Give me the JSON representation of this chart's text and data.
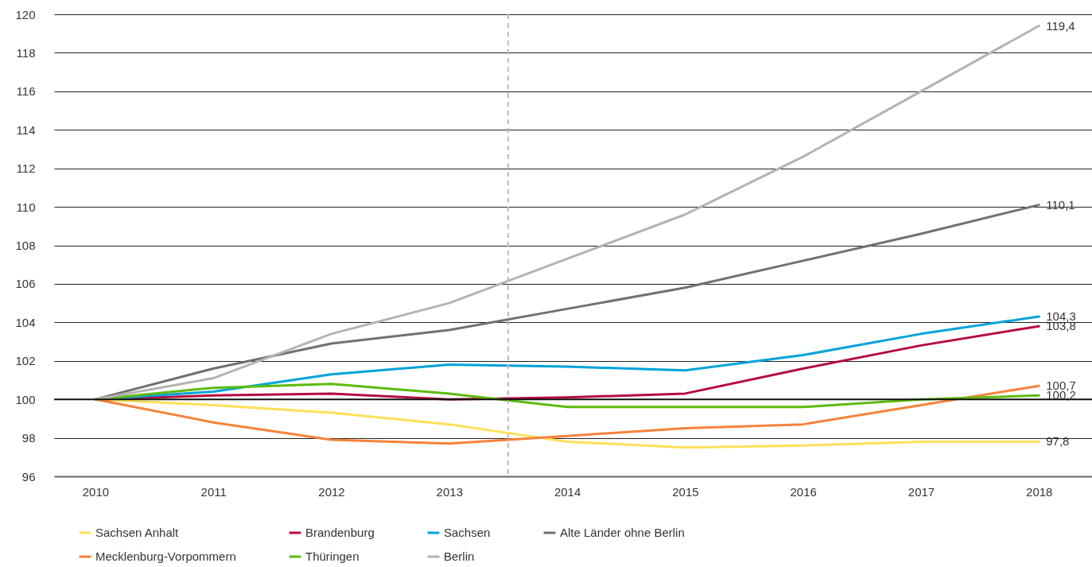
{
  "chart_data": {
    "type": "line",
    "x": [
      2010,
      2011,
      2012,
      2013,
      2014,
      2015,
      2016,
      2017,
      2018
    ],
    "xlim": [
      2009.65,
      2018.45
    ],
    "xticks": [
      2010,
      2011,
      2012,
      2013,
      2014,
      2015,
      2016,
      2017,
      2018
    ],
    "ylim": [
      96,
      120
    ],
    "yticks": [
      96,
      98,
      100,
      102,
      104,
      106,
      108,
      110,
      112,
      114,
      116,
      118,
      120
    ],
    "grid": "y",
    "legend": "bottom",
    "line_style": "solid",
    "ref_lines": [
      {
        "axis": "x",
        "value": 2013.5,
        "color": "#bbbbbb",
        "line_style": "dashed"
      },
      {
        "axis": "y",
        "value": 100,
        "color": "#111111",
        "line_style": "solid"
      }
    ],
    "series": [
      {
        "name": "Sachsen Anhalt",
        "color": "#ffe05a",
        "values": [
          100,
          99.7,
          99.3,
          98.7,
          97.8,
          97.5,
          97.6,
          97.8,
          97.8
        ],
        "value_labels": [
          null,
          null,
          null,
          null,
          null,
          null,
          null,
          null,
          "97,8"
        ]
      },
      {
        "name": "Brandenburg",
        "color": "#b50c3c",
        "values": [
          100,
          100.2,
          100.3,
          100.0,
          100.1,
          100.3,
          101.6,
          102.8,
          103.8
        ],
        "value_labels": [
          null,
          null,
          null,
          null,
          null,
          null,
          null,
          null,
          "103,8"
        ]
      },
      {
        "name": "Sachsen",
        "color": "#00a3d9",
        "values": [
          100,
          100.4,
          101.3,
          101.8,
          101.7,
          101.5,
          102.3,
          103.4,
          104.3
        ],
        "value_labels": [
          null,
          null,
          null,
          null,
          null,
          null,
          null,
          null,
          "104,3"
        ]
      },
      {
        "name": "Alte Länder ohne Berlin",
        "color": "#717171",
        "values": [
          100,
          101.6,
          102.9,
          103.6,
          104.7,
          105.8,
          107.2,
          108.6,
          110.1
        ],
        "value_labels": [
          null,
          null,
          null,
          null,
          null,
          null,
          null,
          null,
          "110,1"
        ]
      },
      {
        "name": "Mecklenburg-Vorpommern",
        "color": "#f7823c",
        "values": [
          100,
          98.8,
          97.9,
          97.7,
          98.1,
          98.5,
          98.7,
          99.7,
          100.7
        ],
        "value_labels": [
          null,
          null,
          null,
          null,
          null,
          null,
          null,
          null,
          "100,7"
        ]
      },
      {
        "name": "Thüringen",
        "color": "#5dbb0c",
        "values": [
          100,
          100.6,
          100.8,
          100.3,
          99.6,
          99.6,
          99.6,
          100.0,
          100.2
        ],
        "value_labels": [
          null,
          null,
          null,
          null,
          null,
          null,
          null,
          null,
          "100,2"
        ]
      },
      {
        "name": "Berlin",
        "color": "#b3b3b3",
        "values": [
          100,
          101.1,
          103.4,
          105.0,
          107.3,
          109.6,
          112.6,
          116.0,
          119.4
        ],
        "value_labels": [
          null,
          null,
          null,
          null,
          null,
          null,
          null,
          null,
          "119,4"
        ]
      }
    ]
  }
}
